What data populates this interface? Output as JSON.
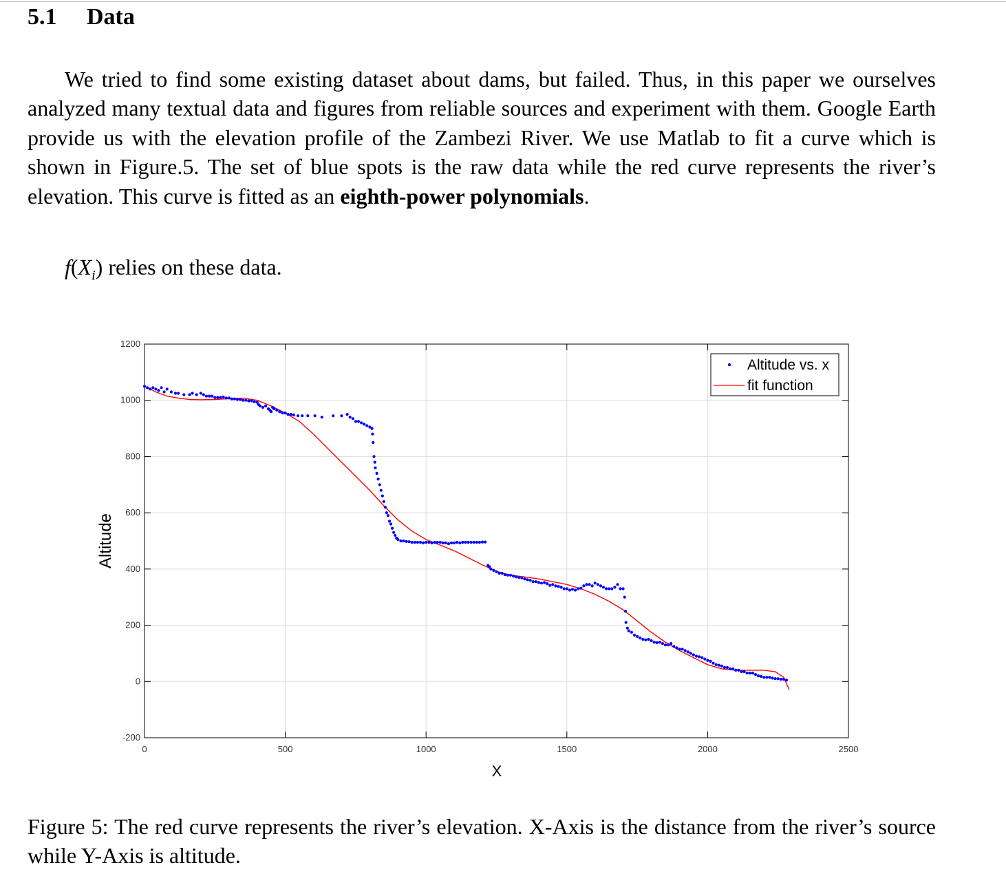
{
  "section": {
    "number": "5.1",
    "title": "Data"
  },
  "paragraph": {
    "text": "We tried to find some existing dataset about dams, but failed. Thus, in this paper we ourselves analyzed many textual data and figures from reliable sources and experiment with them. Google Earth provide us with the elevation profile of the Zambezi River. We use Matlab to fit a curve which is shown in Figure.5. The set of blue spots is the raw data while the red curve represents the river’s elevation. This curve is fitted as an ",
    "bold": "eighth-power polynomials",
    "end": "."
  },
  "equation_line": {
    "func": "f",
    "open": "(",
    "var": "X",
    "sub": "i",
    "close": ")",
    "rest": " relies on these data."
  },
  "caption": "Figure 5: The red curve represents the river’s elevation. X-Axis is the distance from the river’s source while Y-Axis is altitude.",
  "colors": {
    "data": "#0000ff",
    "fit": "#ff0000",
    "grid": "#dcdcdc"
  },
  "chart_data": {
    "type": "scatter",
    "xlabel": "X",
    "ylabel": "Altitude",
    "xlim": [
      0,
      2500
    ],
    "ylim": [
      -200,
      1200
    ],
    "xticks": [
      0,
      500,
      1000,
      1500,
      2000,
      2500
    ],
    "yticks": [
      1200,
      1000,
      800,
      600,
      400,
      200,
      0,
      -200
    ],
    "grid": true,
    "legend_position": "top-right",
    "series": [
      {
        "name": "Altitude vs. x",
        "kind": "markers",
        "points": [
          [
            0,
            1050
          ],
          [
            10,
            1045
          ],
          [
            20,
            1040
          ],
          [
            30,
            1045
          ],
          [
            40,
            1040
          ],
          [
            50,
            1035
          ],
          [
            60,
            1045
          ],
          [
            70,
            1030
          ],
          [
            80,
            1040
          ],
          [
            95,
            1030
          ],
          [
            110,
            1025
          ],
          [
            120,
            1025
          ],
          [
            140,
            1020
          ],
          [
            160,
            1020
          ],
          [
            170,
            1025
          ],
          [
            185,
            1020
          ],
          [
            200,
            1025
          ],
          [
            210,
            1020
          ],
          [
            220,
            1015
          ],
          [
            230,
            1015
          ],
          [
            240,
            1015
          ],
          [
            250,
            1010
          ],
          [
            260,
            1010
          ],
          [
            270,
            1010
          ],
          [
            280,
            1012
          ],
          [
            290,
            1008
          ],
          [
            300,
            1008
          ],
          [
            310,
            1005
          ],
          [
            320,
            1005
          ],
          [
            330,
            1003
          ],
          [
            340,
            1003
          ],
          [
            350,
            1000
          ],
          [
            360,
            1000
          ],
          [
            370,
            998
          ],
          [
            380,
            998
          ],
          [
            390,
            995
          ],
          [
            400,
            993
          ],
          [
            405,
            985
          ],
          [
            410,
            980
          ],
          [
            420,
            975
          ],
          [
            430,
            980
          ],
          [
            440,
            970
          ],
          [
            445,
            965
          ],
          [
            450,
            960
          ],
          [
            455,
            975
          ],
          [
            460,
            970
          ],
          [
            470,
            965
          ],
          [
            480,
            960
          ],
          [
            490,
            955
          ],
          [
            500,
            955
          ],
          [
            510,
            950
          ],
          [
            520,
            950
          ],
          [
            530,
            948
          ],
          [
            545,
            945
          ],
          [
            560,
            945
          ],
          [
            580,
            945
          ],
          [
            605,
            945
          ],
          [
            630,
            940
          ],
          [
            670,
            945
          ],
          [
            700,
            945
          ],
          [
            720,
            950
          ],
          [
            730,
            940
          ],
          [
            740,
            935
          ],
          [
            750,
            925
          ],
          [
            760,
            925
          ],
          [
            770,
            920
          ],
          [
            780,
            915
          ],
          [
            790,
            910
          ],
          [
            800,
            905
          ],
          [
            808,
            900
          ],
          [
            810,
            880
          ],
          [
            812,
            850
          ],
          [
            815,
            800
          ],
          [
            818,
            780
          ],
          [
            820,
            760
          ],
          [
            825,
            740
          ],
          [
            830,
            720
          ],
          [
            835,
            700
          ],
          [
            840,
            680
          ],
          [
            845,
            660
          ],
          [
            850,
            640
          ],
          [
            855,
            620
          ],
          [
            860,
            600
          ],
          [
            865,
            590
          ],
          [
            870,
            570
          ],
          [
            875,
            560
          ],
          [
            880,
            545
          ],
          [
            885,
            530
          ],
          [
            890,
            520
          ],
          [
            895,
            510
          ],
          [
            900,
            505
          ],
          [
            910,
            500
          ],
          [
            920,
            500
          ],
          [
            930,
            498
          ],
          [
            940,
            497
          ],
          [
            950,
            495
          ],
          [
            960,
            495
          ],
          [
            970,
            495
          ],
          [
            980,
            495
          ],
          [
            990,
            493
          ],
          [
            1000,
            495
          ],
          [
            1010,
            495
          ],
          [
            1020,
            493
          ],
          [
            1030,
            495
          ],
          [
            1040,
            495
          ],
          [
            1050,
            495
          ],
          [
            1060,
            493
          ],
          [
            1070,
            493
          ],
          [
            1080,
            490
          ],
          [
            1090,
            493
          ],
          [
            1100,
            493
          ],
          [
            1110,
            495
          ],
          [
            1120,
            493
          ],
          [
            1130,
            495
          ],
          [
            1140,
            495
          ],
          [
            1150,
            495
          ],
          [
            1160,
            495
          ],
          [
            1170,
            495
          ],
          [
            1180,
            495
          ],
          [
            1190,
            495
          ],
          [
            1200,
            496
          ],
          [
            1210,
            496
          ],
          [
            1220,
            413
          ],
          [
            1225,
            408
          ],
          [
            1230,
            400
          ],
          [
            1240,
            395
          ],
          [
            1250,
            390
          ],
          [
            1260,
            385
          ],
          [
            1270,
            385
          ],
          [
            1280,
            380
          ],
          [
            1290,
            378
          ],
          [
            1300,
            378
          ],
          [
            1310,
            375
          ],
          [
            1320,
            372
          ],
          [
            1330,
            370
          ],
          [
            1340,
            368
          ],
          [
            1350,
            365
          ],
          [
            1360,
            362
          ],
          [
            1370,
            360
          ],
          [
            1380,
            355
          ],
          [
            1390,
            355
          ],
          [
            1400,
            352
          ],
          [
            1410,
            350
          ],
          [
            1420,
            352
          ],
          [
            1430,
            348
          ],
          [
            1440,
            342
          ],
          [
            1450,
            345
          ],
          [
            1460,
            340
          ],
          [
            1470,
            338
          ],
          [
            1480,
            335
          ],
          [
            1490,
            330
          ],
          [
            1500,
            330
          ],
          [
            1510,
            325
          ],
          [
            1520,
            328
          ],
          [
            1530,
            325
          ],
          [
            1540,
            330
          ],
          [
            1550,
            332
          ],
          [
            1560,
            340
          ],
          [
            1570,
            345
          ],
          [
            1580,
            345
          ],
          [
            1590,
            340
          ],
          [
            1600,
            350
          ],
          [
            1610,
            345
          ],
          [
            1620,
            340
          ],
          [
            1630,
            335
          ],
          [
            1640,
            330
          ],
          [
            1650,
            330
          ],
          [
            1660,
            330
          ],
          [
            1670,
            335
          ],
          [
            1680,
            345
          ],
          [
            1690,
            330
          ],
          [
            1700,
            330
          ],
          [
            1705,
            300
          ],
          [
            1708,
            250
          ],
          [
            1710,
            210
          ],
          [
            1715,
            190
          ],
          [
            1720,
            180
          ],
          [
            1730,
            175
          ],
          [
            1740,
            165
          ],
          [
            1750,
            160
          ],
          [
            1760,
            155
          ],
          [
            1770,
            150
          ],
          [
            1780,
            148
          ],
          [
            1790,
            150
          ],
          [
            1800,
            145
          ],
          [
            1810,
            140
          ],
          [
            1820,
            138
          ],
          [
            1830,
            140
          ],
          [
            1840,
            135
          ],
          [
            1850,
            130
          ],
          [
            1860,
            130
          ],
          [
            1870,
            135
          ],
          [
            1880,
            125
          ],
          [
            1890,
            120
          ],
          [
            1900,
            115
          ],
          [
            1910,
            115
          ],
          [
            1920,
            110
          ],
          [
            1930,
            105
          ],
          [
            1940,
            100
          ],
          [
            1950,
            95
          ],
          [
            1960,
            90
          ],
          [
            1970,
            88
          ],
          [
            1980,
            85
          ],
          [
            1990,
            80
          ],
          [
            2000,
            75
          ],
          [
            2010,
            72
          ],
          [
            2020,
            65
          ],
          [
            2030,
            60
          ],
          [
            2040,
            58
          ],
          [
            2050,
            55
          ],
          [
            2060,
            50
          ],
          [
            2070,
            50
          ],
          [
            2080,
            45
          ],
          [
            2090,
            45
          ],
          [
            2100,
            40
          ],
          [
            2110,
            40
          ],
          [
            2120,
            35
          ],
          [
            2130,
            35
          ],
          [
            2140,
            30
          ],
          [
            2150,
            30
          ],
          [
            2160,
            30
          ],
          [
            2170,
            25
          ],
          [
            2180,
            20
          ],
          [
            2190,
            18
          ],
          [
            2200,
            15
          ],
          [
            2210,
            15
          ],
          [
            2220,
            15
          ],
          [
            2230,
            12
          ],
          [
            2240,
            10
          ],
          [
            2250,
            10
          ],
          [
            2260,
            8
          ],
          [
            2270,
            8
          ],
          [
            2280,
            5
          ]
        ]
      },
      {
        "name": "fit function",
        "kind": "line",
        "points": [
          [
            0,
            1050
          ],
          [
            40,
            1030
          ],
          [
            80,
            1015
          ],
          [
            120,
            1008
          ],
          [
            160,
            1003
          ],
          [
            200,
            1002
          ],
          [
            250,
            1003
          ],
          [
            300,
            1006
          ],
          [
            350,
            1008
          ],
          [
            400,
            1000
          ],
          [
            450,
            980
          ],
          [
            500,
            955
          ],
          [
            550,
            925
          ],
          [
            600,
            880
          ],
          [
            650,
            830
          ],
          [
            700,
            780
          ],
          [
            750,
            730
          ],
          [
            800,
            680
          ],
          [
            850,
            625
          ],
          [
            900,
            575
          ],
          [
            950,
            535
          ],
          [
            1000,
            505
          ],
          [
            1050,
            485
          ],
          [
            1100,
            465
          ],
          [
            1150,
            440
          ],
          [
            1200,
            415
          ],
          [
            1250,
            392
          ],
          [
            1300,
            378
          ],
          [
            1350,
            372
          ],
          [
            1400,
            365
          ],
          [
            1450,
            355
          ],
          [
            1500,
            345
          ],
          [
            1550,
            330
          ],
          [
            1600,
            310
          ],
          [
            1650,
            285
          ],
          [
            1700,
            255
          ],
          [
            1750,
            215
          ],
          [
            1800,
            175
          ],
          [
            1850,
            140
          ],
          [
            1900,
            110
          ],
          [
            1950,
            85
          ],
          [
            2000,
            60
          ],
          [
            2050,
            45
          ],
          [
            2100,
            40
          ],
          [
            2150,
            40
          ],
          [
            2200,
            40
          ],
          [
            2240,
            35
          ],
          [
            2270,
            15
          ],
          [
            2290,
            -30
          ]
        ]
      }
    ]
  }
}
